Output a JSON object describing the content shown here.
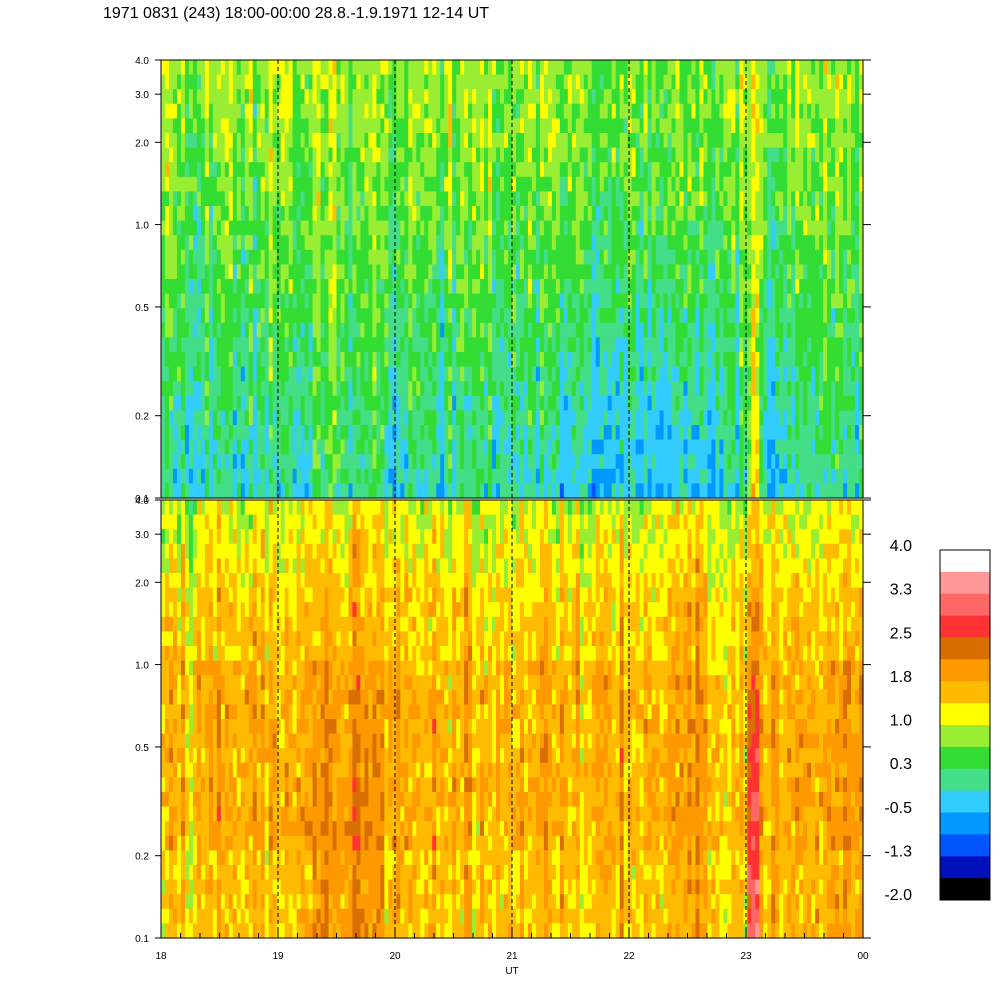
{
  "header": {
    "title": "1971 0831 (243) 18:00-00:00 28.8.-1.9.1971  12-14 UT"
  },
  "chart_data": {
    "type": "heatmap",
    "title": "1971 0831 (243) 18:00-00:00 28.8.-1.9.1971  12-14 UT",
    "xlabel": "UT",
    "x_tick_labels": [
      "18",
      "19",
      "20",
      "21",
      "22",
      "23",
      "00"
    ],
    "x_ticks_hours": [
      18,
      19,
      20,
      21,
      22,
      23,
      24
    ],
    "xlim_hours": [
      18,
      24
    ],
    "y_tick_labels": [
      "4.0",
      "3.0",
      "2.0",
      "1.0",
      "0.5",
      "0.2",
      "0.1"
    ],
    "y_ticks": [
      4.0,
      3.0,
      2.0,
      1.0,
      0.5,
      0.2,
      0.1
    ],
    "ylim": [
      0.1,
      4.0
    ],
    "y_scale": "log",
    "dashed_hour_lines": [
      19,
      20,
      21,
      22,
      23
    ],
    "panels": [
      {
        "name": "upper",
        "dominant_level": 0.3,
        "low_freq_level": -0.2
      },
      {
        "name": "lower",
        "dominant_level": 1.5,
        "low_freq_level": 1.6
      }
    ],
    "colorbar": {
      "labels": [
        "4.0",
        "3.3",
        "2.5",
        "1.8",
        "1.0",
        "0.3",
        "-0.5",
        "-1.3",
        "-2.0"
      ],
      "colors_top_to_bottom": [
        "#ffffff",
        "#ff9999",
        "#ff6666",
        "#ff3333",
        "#d96f00",
        "#ff9900",
        "#ffbb00",
        "#ffff00",
        "#99ee33",
        "#33dd33",
        "#44dd88",
        "#33ccff",
        "#0099ff",
        "#0055ff",
        "#0011bb",
        "#000000"
      ],
      "range": [
        -2.0,
        4.0
      ]
    }
  }
}
